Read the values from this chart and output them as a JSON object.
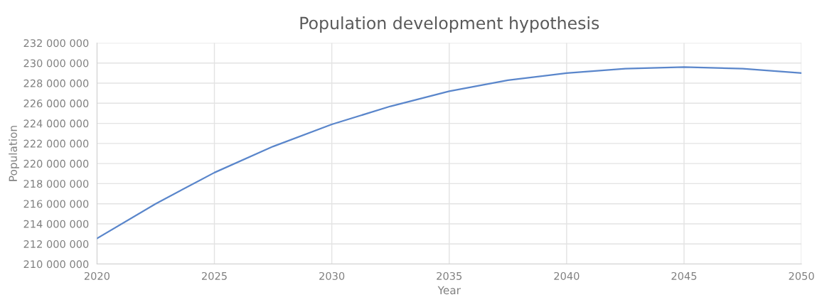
{
  "chart_data": {
    "type": "line",
    "title": "Population development hypothesis",
    "xlabel": "Year",
    "ylabel": "Population",
    "x": [
      2020,
      2022.5,
      2025,
      2027.5,
      2030,
      2032.5,
      2035,
      2037.5,
      2040,
      2042.5,
      2045,
      2047.5,
      2050
    ],
    "series": [
      {
        "color": "#5a86cb",
        "values": [
          212550000,
          216000000,
          219100000,
          221700000,
          223900000,
          225700000,
          227200000,
          228300000,
          229000000,
          229450000,
          229600000,
          229450000,
          229000000
        ]
      }
    ],
    "xlim": [
      2020,
      2050
    ],
    "xticks": [
      2020,
      2025,
      2030,
      2035,
      2040,
      2045,
      2050
    ],
    "ylim": [
      210000000,
      232000000
    ],
    "yticks": [
      {
        "value": 210000000,
        "label": "210 000 000"
      },
      {
        "value": 212000000,
        "label": "212 000 000"
      },
      {
        "value": 214000000,
        "label": "214 000 000"
      },
      {
        "value": 216000000,
        "label": "216 000 000"
      },
      {
        "value": 218000000,
        "label": "218 000 000"
      },
      {
        "value": 220000000,
        "label": "220 000 000"
      },
      {
        "value": 222000000,
        "label": "222 000 000"
      },
      {
        "value": 224000000,
        "label": "224 000 000"
      },
      {
        "value": 226000000,
        "label": "226 000 000"
      },
      {
        "value": 228000000,
        "label": "228 000 000"
      },
      {
        "value": 230000000,
        "label": "230 000 000"
      },
      {
        "value": 232000000,
        "label": "232 000 000"
      }
    ],
    "grid": true,
    "marker": "none",
    "line_style": "solid"
  }
}
